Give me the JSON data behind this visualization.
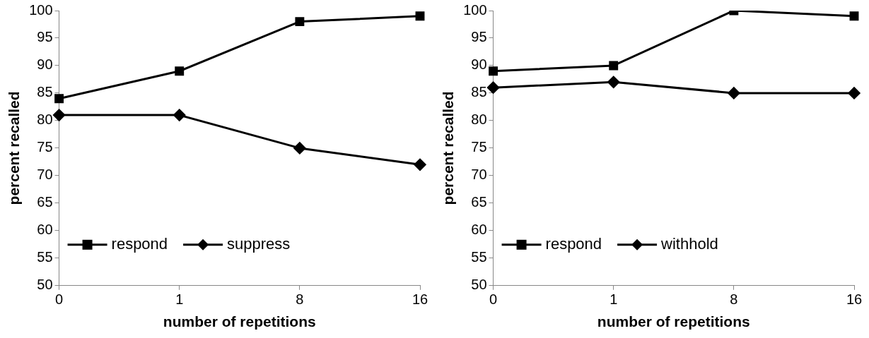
{
  "chart_data": [
    {
      "type": "line",
      "xlabel": "number of repetitions",
      "ylabel": "percent recalled",
      "categories": [
        "0",
        "1",
        "8",
        "16"
      ],
      "ylim": [
        50,
        100
      ],
      "yticks": [
        50,
        55,
        60,
        65,
        70,
        75,
        80,
        85,
        90,
        95,
        100
      ],
      "grid": false,
      "legend": "bottom left",
      "line_style": "solid",
      "series": [
        {
          "name": "respond",
          "color": "#000000",
          "marker": "square",
          "values": [
            84,
            89,
            98,
            99
          ]
        },
        {
          "name": "suppress",
          "color": "#000000",
          "marker": "diamond",
          "values": [
            81,
            81,
            75,
            72
          ]
        }
      ]
    },
    {
      "type": "line",
      "xlabel": "number of repetitions",
      "ylabel": "percent recalled",
      "categories": [
        "0",
        "1",
        "8",
        "16"
      ],
      "ylim": [
        50,
        100
      ],
      "yticks": [
        50,
        55,
        60,
        65,
        70,
        75,
        80,
        85,
        90,
        95,
        100
      ],
      "grid": false,
      "legend": "bottom left",
      "line_style": "solid",
      "series": [
        {
          "name": "respond",
          "color": "#000000",
          "marker": "square",
          "values": [
            89,
            90,
            100,
            99
          ]
        },
        {
          "name": "withhold",
          "color": "#000000",
          "marker": "diamond",
          "values": [
            86,
            87,
            85,
            85
          ]
        }
      ]
    }
  ]
}
